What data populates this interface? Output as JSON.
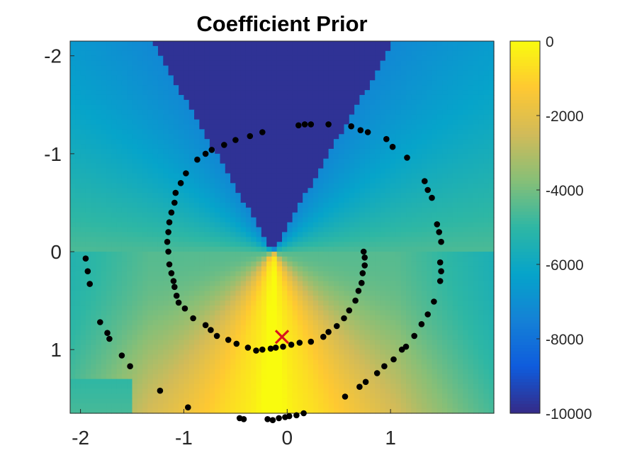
{
  "chart_data": {
    "type": "heatmap",
    "title": "Coefficient Prior",
    "xlabel": "",
    "ylabel": "",
    "xlim": [
      -2.1,
      2.0
    ],
    "ylim": [
      -2.15,
      1.65
    ],
    "y_axis_direction": "reversed",
    "x_ticks": [
      -2,
      -1,
      0,
      1
    ],
    "x_tick_labels": [
      "-2",
      "-1",
      "0",
      "1"
    ],
    "y_ticks": [
      -2,
      -1,
      0,
      1
    ],
    "y_tick_labels": [
      "-2",
      "-1",
      "0",
      "1"
    ],
    "colorbar": {
      "range": [
        -10000,
        0
      ],
      "ticks": [
        0,
        -2000,
        -4000,
        -6000,
        -8000,
        -10000
      ],
      "tick_labels": [
        "0",
        "-2000",
        "-4000",
        "-6000",
        "-8000",
        "-10000"
      ],
      "colormap": "parula",
      "stops": [
        "#352a87",
        "#0f5cdd",
        "#1481d6",
        "#06a4ca",
        "#2eb7a4",
        "#87bf77",
        "#d1bb59",
        "#fec832",
        "#f9fb0e"
      ]
    },
    "heatmap_description": "Value at (x, y) as shown by the color field; near 0 in a narrow plume below the origin, around -10000 in a wedge above the origin",
    "grid": false,
    "legend": "none",
    "scatter_points": {
      "color": "#000000",
      "points": [
        [
          -1.95,
          0.07
        ],
        [
          -1.93,
          0.2
        ],
        [
          -1.91,
          0.33
        ],
        [
          -1.81,
          0.72
        ],
        [
          -1.74,
          0.83
        ],
        [
          -1.72,
          0.89
        ],
        [
          -1.6,
          1.06
        ],
        [
          -1.52,
          1.17
        ],
        [
          -1.23,
          1.42
        ],
        [
          -0.96,
          1.59
        ],
        [
          -0.46,
          1.7
        ],
        [
          -0.42,
          1.71
        ],
        [
          -0.19,
          1.71
        ],
        [
          -0.14,
          1.72
        ],
        [
          -0.08,
          1.7
        ],
        [
          -0.02,
          1.69
        ],
        [
          0.02,
          1.68
        ],
        [
          0.09,
          1.67
        ],
        [
          0.16,
          1.65
        ],
        [
          0.56,
          1.48
        ],
        [
          0.7,
          1.38
        ],
        [
          0.76,
          1.33
        ],
        [
          0.87,
          1.24
        ],
        [
          0.94,
          1.17
        ],
        [
          1.03,
          1.1
        ],
        [
          1.11,
          1.0
        ],
        [
          1.15,
          0.97
        ],
        [
          1.23,
          0.86
        ],
        [
          1.3,
          0.74
        ],
        [
          1.36,
          0.64
        ],
        [
          1.42,
          0.51
        ],
        [
          1.48,
          0.3
        ],
        [
          1.49,
          0.2
        ],
        [
          1.48,
          0.11
        ],
        [
          1.49,
          -0.1
        ],
        [
          1.47,
          -0.2
        ],
        [
          1.45,
          -0.28
        ],
        [
          1.4,
          -0.55
        ],
        [
          1.36,
          -0.63
        ],
        [
          1.33,
          -0.72
        ],
        [
          1.16,
          -0.96
        ],
        [
          1.02,
          -1.07
        ],
        [
          0.96,
          -1.15
        ],
        [
          0.78,
          -1.22
        ],
        [
          0.71,
          -1.24
        ],
        [
          0.62,
          -1.28
        ],
        [
          0.4,
          -1.3
        ],
        [
          0.23,
          -1.3
        ],
        [
          0.17,
          -1.3
        ],
        [
          0.11,
          -1.29
        ],
        [
          -0.24,
          -1.22
        ],
        [
          -0.36,
          -1.18
        ],
        [
          -0.5,
          -1.14
        ],
        [
          -0.61,
          -1.09
        ],
        [
          -0.73,
          -1.04
        ],
        [
          -0.79,
          -1.0
        ],
        [
          -0.87,
          -0.94
        ],
        [
          -0.98,
          -0.8
        ],
        [
          -1.03,
          -0.7
        ],
        [
          -1.08,
          -0.6
        ],
        [
          -1.09,
          -0.5
        ],
        [
          -1.12,
          -0.4
        ],
        [
          -1.14,
          -0.3
        ],
        [
          -1.15,
          -0.2
        ],
        [
          -1.16,
          -0.1
        ],
        [
          -1.15,
          0.0
        ],
        [
          -1.14,
          0.13
        ],
        [
          -1.12,
          0.22
        ],
        [
          -1.1,
          0.3
        ],
        [
          -1.09,
          0.36
        ],
        [
          -1.07,
          0.45
        ],
        [
          -1.05,
          0.52
        ],
        [
          -0.99,
          0.58
        ],
        [
          -0.91,
          0.68
        ],
        [
          -0.79,
          0.75
        ],
        [
          -0.74,
          0.8
        ],
        [
          -0.68,
          0.86
        ],
        [
          -0.57,
          0.9
        ],
        [
          -0.49,
          0.94
        ],
        [
          -0.38,
          0.98
        ],
        [
          -0.3,
          1.01
        ],
        [
          -0.24,
          1.0
        ],
        [
          -0.16,
          0.99
        ],
        [
          -0.11,
          0.98
        ],
        [
          -0.04,
          0.97
        ],
        [
          0.04,
          0.95
        ],
        [
          0.12,
          0.93
        ],
        [
          0.23,
          0.92
        ],
        [
          0.35,
          0.87
        ],
        [
          0.4,
          0.82
        ],
        [
          0.48,
          0.76
        ],
        [
          0.55,
          0.68
        ],
        [
          0.6,
          0.6
        ],
        [
          0.66,
          0.5
        ],
        [
          0.69,
          0.4
        ],
        [
          0.72,
          0.32
        ],
        [
          0.73,
          0.22
        ],
        [
          0.75,
          0.14
        ],
        [
          0.75,
          0.06
        ],
        [
          0.74,
          0.0
        ]
      ]
    },
    "marker": {
      "symbol": "×",
      "color": "#d7141e",
      "x": -0.05,
      "y": 0.87
    }
  }
}
